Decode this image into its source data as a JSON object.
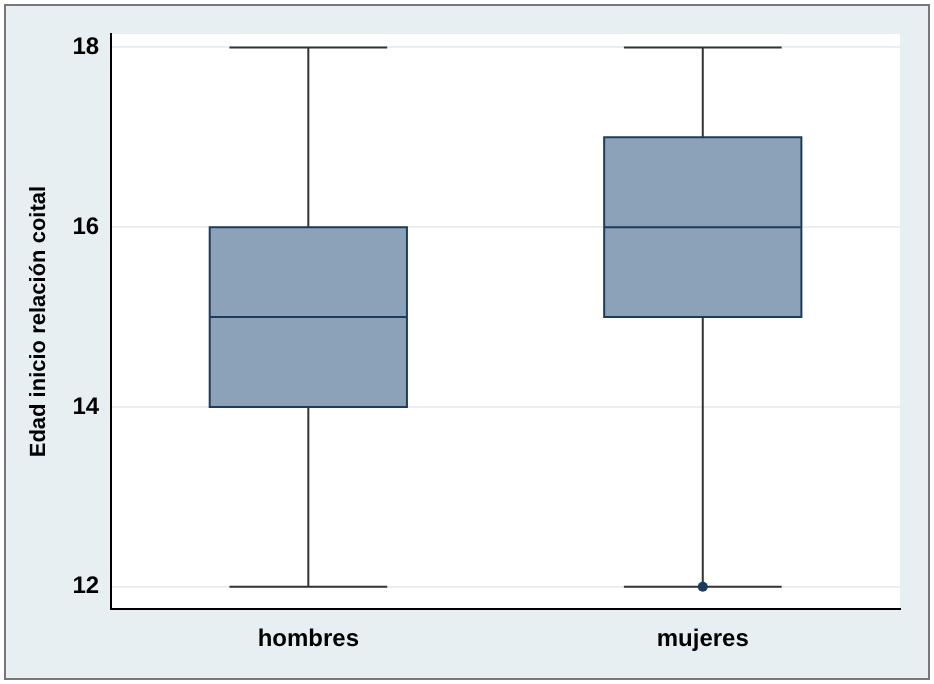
{
  "chart_data": {
    "type": "box",
    "ylabel": "Edad inicio relación coital",
    "categories": [
      "hombres",
      "mujeres"
    ],
    "color": "#8ca2b8",
    "boxes": [
      {
        "low": 12,
        "q1": 14,
        "median": 15,
        "q3": 16,
        "high": 18
      },
      {
        "low": 12,
        "q1": 15,
        "median": 16,
        "q3": 17,
        "high": 18,
        "outliers": [
          12
        ]
      }
    ],
    "ylim": [
      11.75,
      18.15
    ],
    "yticks": [
      12,
      14,
      16,
      18
    ],
    "grid": "y",
    "legend": false
  }
}
